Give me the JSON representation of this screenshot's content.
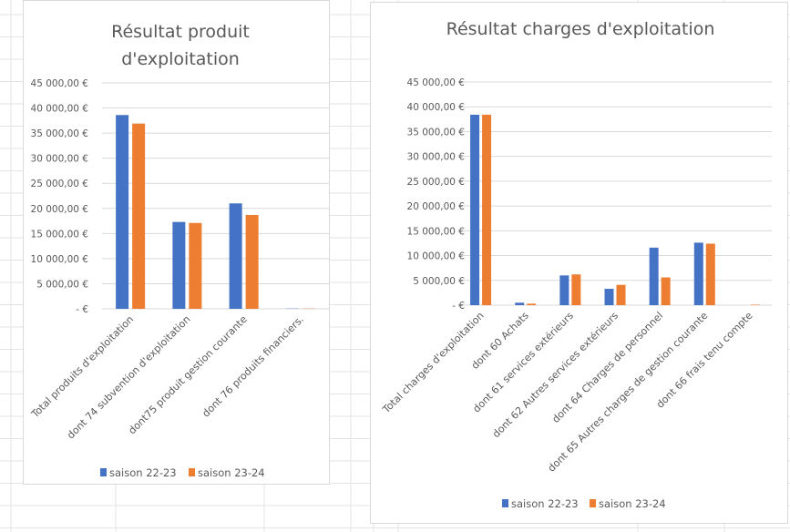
{
  "chart_data": [
    {
      "type": "bar",
      "title": "Résultat produit d'exploitation",
      "title_lines": [
        "Résultat produit",
        "d'exploitation"
      ],
      "categories": [
        "Total produits d'exploitation",
        "dont 74 subvention d'exploitation",
        "dont75 produit gestion courante",
        "dont 76 produits financiers."
      ],
      "series": [
        {
          "name": "saison 22-23",
          "color": "#4472C4",
          "values": [
            38600,
            17300,
            21000,
            50
          ]
        },
        {
          "name": "saison 23-24",
          "color": "#ED7D31",
          "values": [
            36900,
            17100,
            18700,
            50
          ]
        }
      ],
      "yticks": [
        "-  €",
        "5 000,00 €",
        "10 000,00 €",
        "15 000,00 €",
        "20 000,00 €",
        "25 000,00 €",
        "30 000,00 €",
        "35 000,00 €",
        "40 000,00 €",
        "45 000,00 €"
      ],
      "ylim": [
        0,
        45000
      ],
      "xlabel": "",
      "ylabel": "",
      "grid": true,
      "legend": "bottom"
    },
    {
      "type": "bar",
      "title": "Résultat charges d'exploitation",
      "title_lines": [
        "Résultat charges d'exploitation"
      ],
      "categories": [
        "Total charges d'exploitation",
        "dont 60 Achats",
        "dont 61 services extérieurs",
        "dont 62 Autres services extérieurs",
        "dont 64 Charges de personnel",
        "dont 65 Autres charges de gestion courante",
        "dont 66 frais tenu compte"
      ],
      "series": [
        {
          "name": "saison 22-23",
          "color": "#4472C4",
          "values": [
            38400,
            500,
            6000,
            3300,
            11600,
            12600,
            0
          ]
        },
        {
          "name": "saison 23-24",
          "color": "#ED7D31",
          "values": [
            38400,
            300,
            6200,
            4100,
            5600,
            12400,
            100
          ]
        }
      ],
      "yticks": [
        "-  €",
        "5 000,00 €",
        "10 000,00 €",
        "15 000,00 €",
        "20 000,00 €",
        "25 000,00 €",
        "30 000,00 €",
        "35 000,00 €",
        "40 000,00 €",
        "45 000,00 €"
      ],
      "ylim": [
        0,
        45000
      ],
      "xlabel": "",
      "ylabel": "",
      "grid": true,
      "legend": "bottom"
    }
  ]
}
